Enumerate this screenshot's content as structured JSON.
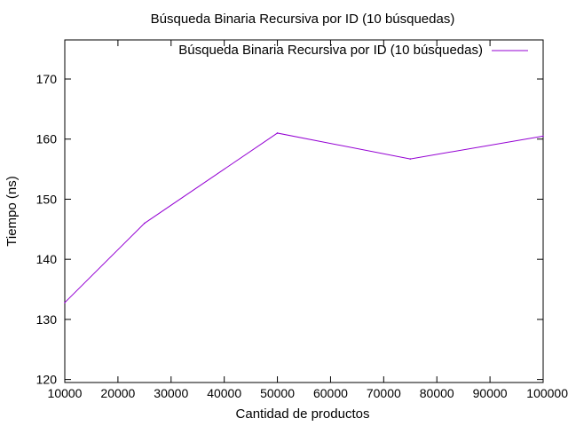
{
  "chart_data": {
    "type": "line",
    "title": "Búsqueda Binaria Recursiva por ID (10 búsquedas)",
    "xlabel": "Cantidad de productos",
    "ylabel": "Tiempo (ns)",
    "xlim": [
      10000,
      100000
    ],
    "ylim": [
      119.5,
      176.5
    ],
    "xticks": [
      10000,
      20000,
      30000,
      40000,
      50000,
      60000,
      70000,
      80000,
      90000,
      100000
    ],
    "yticks": [
      120,
      130,
      140,
      150,
      160,
      170
    ],
    "grid": false,
    "legend_position": "top-right",
    "series": [
      {
        "name": "Búsqueda Binaria Recursiva por ID (10 búsquedas)",
        "color": "#9400d3",
        "x": [
          10000,
          25000,
          50000,
          75000,
          100000
        ],
        "y": [
          132.8,
          146.0,
          161.0,
          156.7,
          160.5
        ]
      }
    ]
  }
}
